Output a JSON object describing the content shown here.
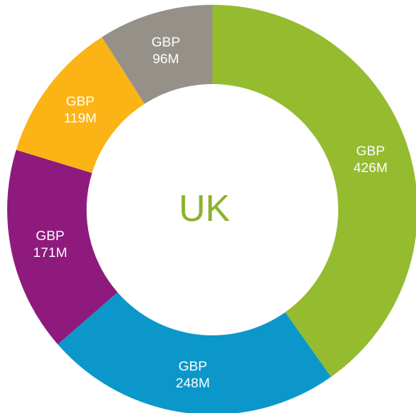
{
  "chart_data": {
    "type": "donut",
    "center_label": "UK",
    "values": [
      426,
      248,
      171,
      119,
      96
    ],
    "value_labels": [
      "GBP\n426M",
      "GBP\n248M",
      "GBP\n171M",
      "GBP\n119M",
      "GBP\n96M"
    ],
    "colors": [
      "#95bb2f",
      "#0b97c9",
      "#8e1a7d",
      "#fbb316",
      "#959189"
    ],
    "center_color": "#8ab22a"
  }
}
